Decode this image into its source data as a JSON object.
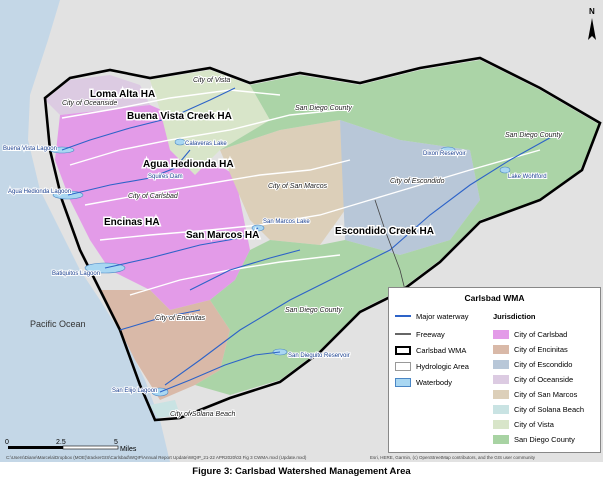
{
  "caption": "Figure 3: Carlsbad Watershed Management Area",
  "hydrologic_areas": [
    "Loma Alta HA",
    "Buena Vista Creek HA",
    "Agua Hedionda HA",
    "Encinas HA",
    "San Marcos HA",
    "Escondido Creek HA"
  ],
  "city_labels": [
    "City of Vista",
    "City of Oceanside",
    "San Diego County",
    "San Diego County",
    "City of Carlsbad",
    "City of San Marcos",
    "City of Escondido",
    "San Diego County",
    "City of Encinitas",
    "City of Solana Beach"
  ],
  "waterbody_labels": [
    "Calaveras Lake",
    "Squires Dam",
    "San Marcos Lake",
    "Dixon Reservoir",
    "Lake Wohlford",
    "San Dieguito Reservoir"
  ],
  "lagoon_labels": [
    "Buena Vista Lagoon",
    "Agua Hedionda Lagoon",
    "Batiquitos Lagoon",
    "San Elijo Lagoon"
  ],
  "ocean_label": "Pacific Ocean",
  "scale": {
    "ticks": [
      "0",
      "2.5",
      "5"
    ],
    "unit": "Miles"
  },
  "attribution": "Esri, HERE, Garmin, (c) OpenStreetMap contributors, and the GIS user community",
  "file_path": "C:\\Users\\Diane\\Marcela\\Dropbox (MOE)\\trackerGIS\\Carlsbad\\WQIP\\Annual Report Update\\WQIP_21-22 APR2020\\03 Fig 3 CWMA.mxd (Update.mxd)",
  "legend": {
    "title": "Carlsbad WMA",
    "left_items": [
      "Major waterway",
      "Freeway",
      "Carlsbad WMA",
      "Hydrologic Area",
      "Waterbody"
    ],
    "jurisdiction_title": "Jurisdiction",
    "jurisdictions": [
      {
        "name": "City of Carlsbad",
        "color": "#e39be8"
      },
      {
        "name": "City of Encinitas",
        "color": "#d9b9a8"
      },
      {
        "name": "City of Escondido",
        "color": "#b8c7d8"
      },
      {
        "name": "City of Oceanside",
        "color": "#dccbe2"
      },
      {
        "name": "City of San Marcos",
        "color": "#dccfb9"
      },
      {
        "name": "City of Solana Beach",
        "color": "#c9e3e3"
      },
      {
        "name": "City of Vista",
        "color": "#d8e5c9"
      },
      {
        "name": "San Diego County",
        "color": "#a8d3a3"
      }
    ]
  },
  "colors": {
    "waterway": "#2d63c8",
    "waterbody": "#a9d7f2",
    "ocean": "#c4d7e7",
    "land": "#e5e5e5",
    "boundary": "#000000"
  }
}
